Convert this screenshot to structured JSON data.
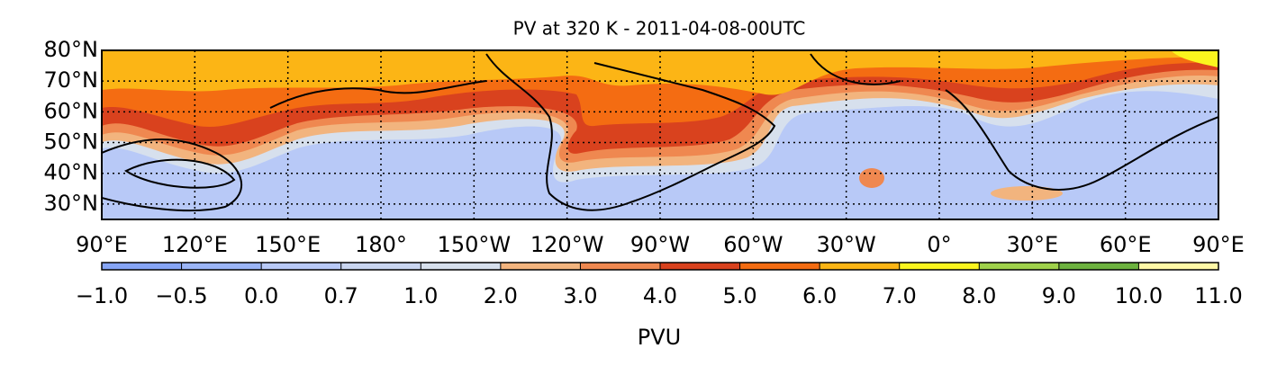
{
  "map": {
    "title": "PV at 320 K -  2011-04-08-00UTC",
    "latlim": [
      25,
      80
    ],
    "lat_ticks": [
      {
        "value": 80,
        "label": "80°N"
      },
      {
        "value": 70,
        "label": "70°N"
      },
      {
        "value": 60,
        "label": "60°N"
      },
      {
        "value": 50,
        "label": "50°N"
      },
      {
        "value": 40,
        "label": "40°N"
      },
      {
        "value": 30,
        "label": "30°N"
      }
    ],
    "lon_ticks": [
      {
        "value": 90,
        "label": "90°E"
      },
      {
        "value": 120,
        "label": "120°E"
      },
      {
        "value": 150,
        "label": "150°E"
      },
      {
        "value": 180,
        "label": "180°"
      },
      {
        "value": -150,
        "label": "150°W"
      },
      {
        "value": -120,
        "label": "120°W"
      },
      {
        "value": -90,
        "label": "90°W"
      },
      {
        "value": -60,
        "label": "60°W"
      },
      {
        "value": -30,
        "label": "30°W"
      },
      {
        "value": 0,
        "label": "0°"
      },
      {
        "value": 30,
        "label": "30°E"
      },
      {
        "value": 60,
        "label": "60°E"
      },
      {
        "value": 90,
        "label": "90°E"
      }
    ]
  },
  "colorbar": {
    "label": "PVU",
    "ticks": [
      {
        "value": -1,
        "label": "−1.0"
      },
      {
        "value": -0.5,
        "label": "−0.5"
      },
      {
        "value": 0,
        "label": "0.0"
      },
      {
        "value": 0.7,
        "label": "0.7"
      },
      {
        "value": 1,
        "label": "1.0"
      },
      {
        "value": 2,
        "label": "2.0"
      },
      {
        "value": 3,
        "label": "3.0"
      },
      {
        "value": 4,
        "label": "4.0"
      },
      {
        "value": 5,
        "label": "5.0"
      },
      {
        "value": 6,
        "label": "6.0"
      },
      {
        "value": 7,
        "label": "7.0"
      },
      {
        "value": 8,
        "label": "8.0"
      },
      {
        "value": 9,
        "label": "9.0"
      },
      {
        "value": 10,
        "label": "10.0"
      },
      {
        "value": 11,
        "label": "11.0"
      }
    ],
    "colors": [
      "#86a5f5",
      "#9bb5f7",
      "#b8c9f7",
      "#c9d5f0",
      "#d7e0ed",
      "#f2b47e",
      "#ef8850",
      "#d9421e",
      "#f46c12",
      "#fcb515",
      "#fbf51e",
      "#9fd14a",
      "#6cb23e",
      "#fff8a6"
    ]
  }
}
